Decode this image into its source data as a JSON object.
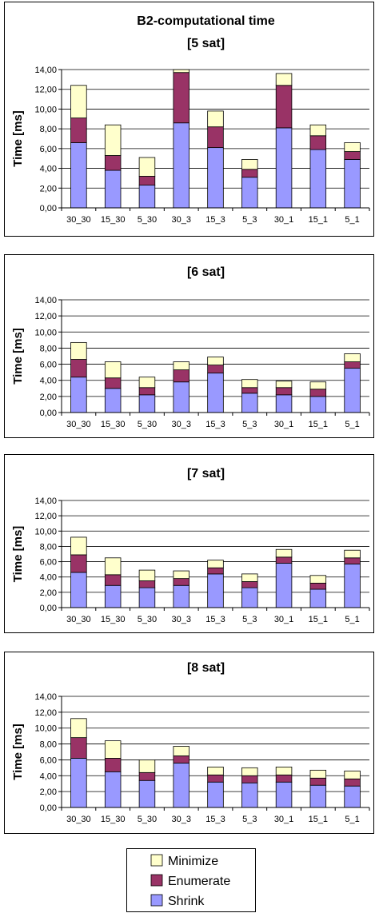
{
  "colors": {
    "Shrink": "#9999ff",
    "Enumerate": "#993366",
    "Minimize": "#ffffcc",
    "bar_stroke": "#000000",
    "grid": "#000000",
    "plot_bg": "#ffffff",
    "frame": "#000000"
  },
  "legend": {
    "items": [
      "Minimize",
      "Enumerate",
      "Shrink"
    ],
    "placement": "bottom"
  },
  "chart_data": [
    {
      "type": "bar",
      "stacked": true,
      "title": "B2-computational time",
      "subtitle": "[5 sat]",
      "xlabel": "",
      "ylabel": "Time [ms]",
      "ylim": [
        0,
        14
      ],
      "yticks": [
        "0,00",
        "2,00",
        "4,00",
        "6,00",
        "8,00",
        "10,00",
        "12,00",
        "14,00"
      ],
      "grid": true,
      "categories": [
        "30_30",
        "15_30",
        "5_30",
        "30_3",
        "15_3",
        "5_3",
        "30_1",
        "15_1",
        "5_1"
      ],
      "series": [
        {
          "name": "Shrink",
          "values": [
            6.6,
            3.8,
            2.3,
            8.6,
            6.1,
            3.1,
            8.1,
            5.9,
            4.9
          ]
        },
        {
          "name": "Enumerate",
          "values": [
            2.5,
            1.5,
            0.9,
            5.1,
            2.1,
            0.8,
            4.3,
            1.4,
            0.8
          ]
        },
        {
          "name": "Minimize",
          "values": [
            3.3,
            3.1,
            1.9,
            0.3,
            1.6,
            1.0,
            1.2,
            1.1,
            0.9
          ]
        }
      ]
    },
    {
      "type": "bar",
      "stacked": true,
      "title": "[6 sat]",
      "xlabel": "",
      "ylabel": "Time [ms]",
      "ylim": [
        0,
        14
      ],
      "yticks": [
        "0,00",
        "2,00",
        "4,00",
        "6,00",
        "8,00",
        "10,00",
        "12,00",
        "14,00"
      ],
      "grid": true,
      "categories": [
        "30_30",
        "15_30",
        "5_30",
        "30_3",
        "15_3",
        "5_3",
        "30_1",
        "15_1",
        "5_1"
      ],
      "series": [
        {
          "name": "Shrink",
          "values": [
            4.4,
            3.0,
            2.2,
            3.8,
            4.9,
            2.4,
            2.2,
            2.0,
            5.5
          ]
        },
        {
          "name": "Enumerate",
          "values": [
            2.2,
            1.3,
            0.9,
            1.5,
            1.0,
            0.7,
            0.9,
            0.9,
            0.8
          ]
        },
        {
          "name": "Minimize",
          "values": [
            2.1,
            2.0,
            1.3,
            1.0,
            1.0,
            1.0,
            0.8,
            0.9,
            1.0
          ]
        }
      ]
    },
    {
      "type": "bar",
      "stacked": true,
      "title": "[7 sat]",
      "xlabel": "",
      "ylabel": "Time [ms]",
      "ylim": [
        0,
        14
      ],
      "yticks": [
        "0,00",
        "2,00",
        "4,00",
        "6,00",
        "8,00",
        "10,00",
        "12,00",
        "14,00"
      ],
      "grid": true,
      "categories": [
        "30_30",
        "15_30",
        "5_30",
        "30_3",
        "15_3",
        "5_3",
        "30_1",
        "15_1",
        "5_1"
      ],
      "series": [
        {
          "name": "Shrink",
          "values": [
            4.6,
            2.9,
            2.6,
            2.9,
            4.4,
            2.6,
            5.8,
            2.4,
            5.7
          ]
        },
        {
          "name": "Enumerate",
          "values": [
            2.3,
            1.4,
            0.9,
            0.9,
            0.8,
            0.8,
            0.8,
            0.8,
            0.8
          ]
        },
        {
          "name": "Minimize",
          "values": [
            2.3,
            2.2,
            1.4,
            1.0,
            1.0,
            1.0,
            1.0,
            1.0,
            1.0
          ]
        }
      ]
    },
    {
      "type": "bar",
      "stacked": true,
      "title": "[8 sat]",
      "xlabel": "",
      "ylabel": "Time [ms]",
      "ylim": [
        0,
        14
      ],
      "yticks": [
        "0,00",
        "2,00",
        "4,00",
        "6,00",
        "8,00",
        "10,00",
        "12,00",
        "14,00"
      ],
      "grid": true,
      "categories": [
        "30_30",
        "15_30",
        "5_30",
        "30_3",
        "15_3",
        "5_3",
        "30_1",
        "15_1",
        "5_1"
      ],
      "series": [
        {
          "name": "Shrink",
          "values": [
            6.2,
            4.5,
            3.4,
            5.6,
            3.2,
            3.1,
            3.2,
            2.8,
            2.7
          ]
        },
        {
          "name": "Enumerate",
          "values": [
            2.6,
            1.7,
            1.0,
            0.9,
            0.9,
            0.9,
            0.9,
            0.9,
            0.9
          ]
        },
        {
          "name": "Minimize",
          "values": [
            2.4,
            2.2,
            1.6,
            1.2,
            1.0,
            1.0,
            1.0,
            1.0,
            1.0
          ]
        }
      ]
    }
  ]
}
